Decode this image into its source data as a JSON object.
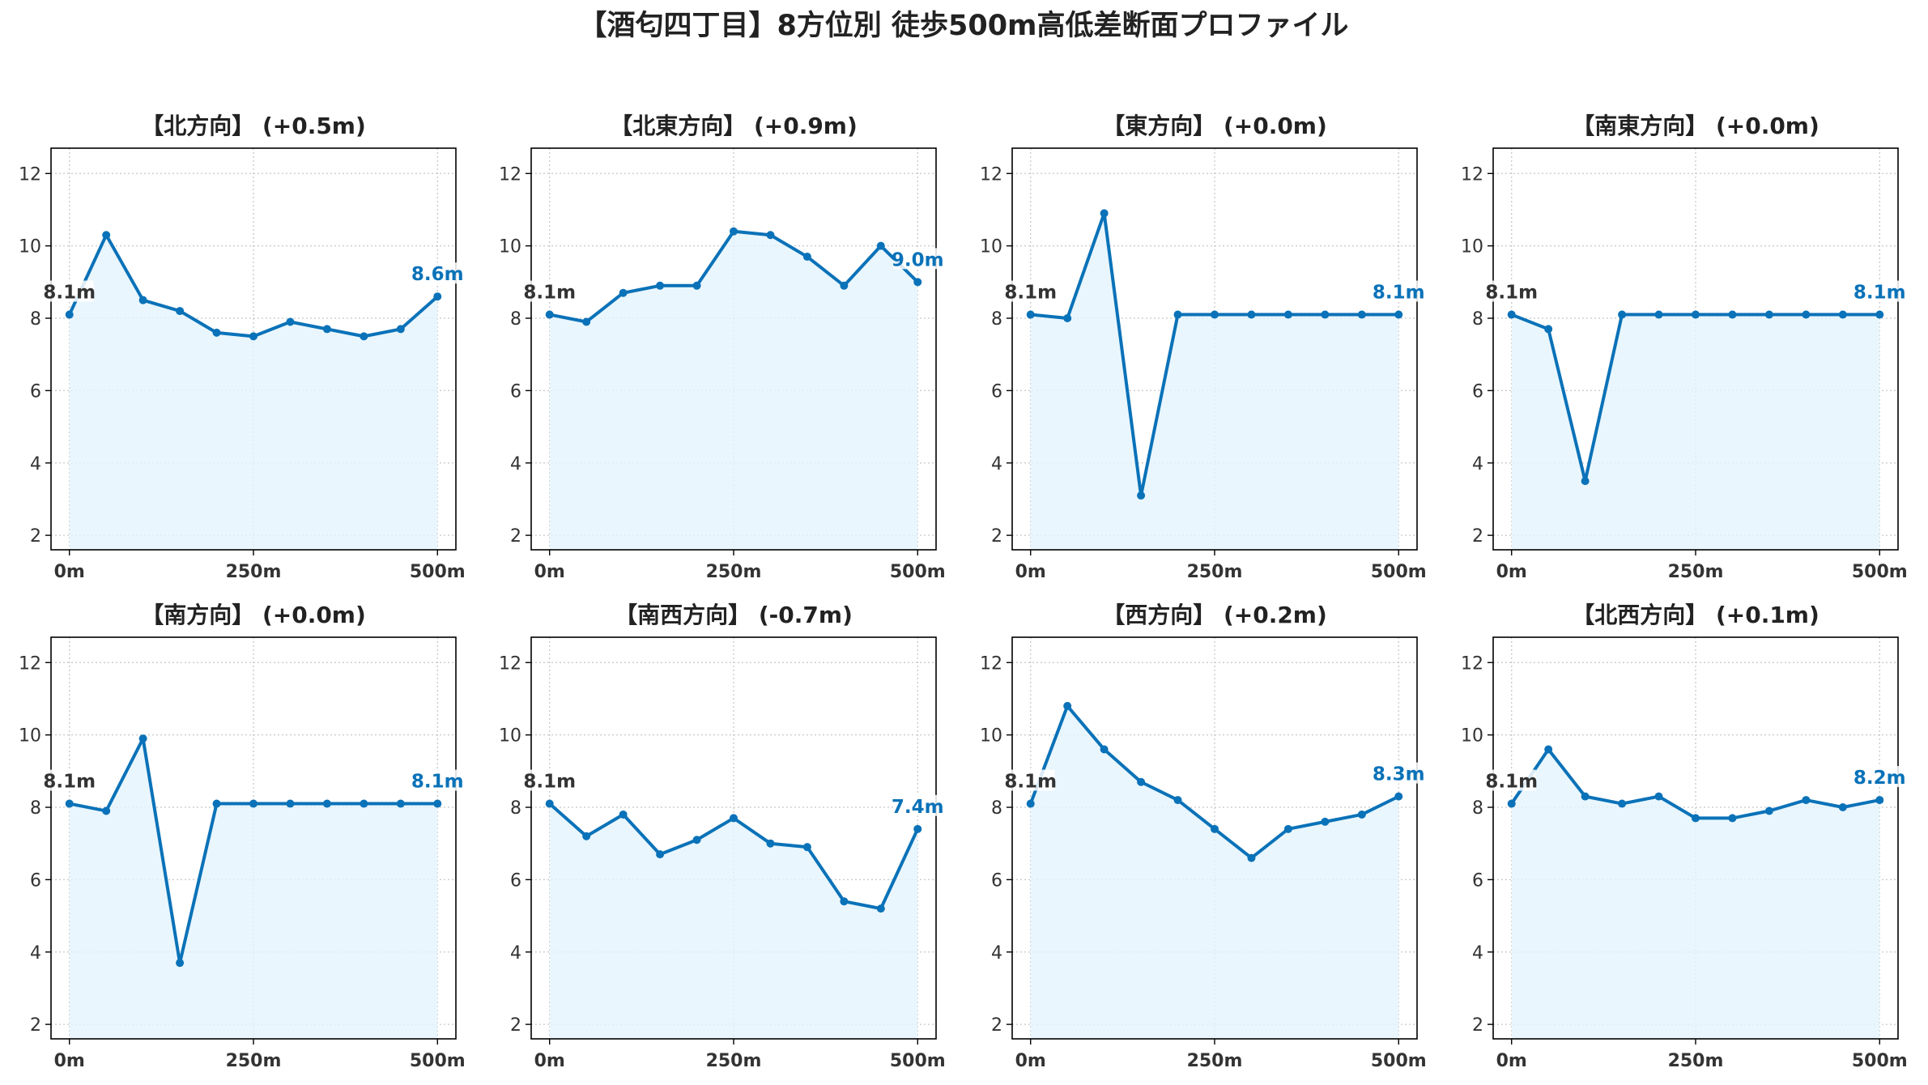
{
  "figure_title": "【酒匂四丁目】8方位別 徒歩500m高低差断面プロファイル",
  "colors": {
    "line": "#0a72b8",
    "fill": "#e3f4fc",
    "grid": "#c8c8c8",
    "end_label": "#0a72b8",
    "start_label": "#333333"
  },
  "chart_data": [
    {
      "type": "area",
      "title": "【北方向】 (+0.5m)",
      "x": [
        0,
        50,
        100,
        150,
        200,
        250,
        300,
        350,
        400,
        450,
        500
      ],
      "values": [
        8.1,
        10.3,
        8.5,
        8.2,
        7.6,
        7.5,
        7.9,
        7.7,
        7.5,
        7.7,
        8.6
      ],
      "start_label": "8.1m",
      "end_label": "8.6m",
      "xticks": [
        "0m",
        "250m",
        "500m"
      ],
      "yticks": [
        "2",
        "4",
        "6",
        "8",
        "10",
        "12"
      ],
      "ylim": [
        1.6,
        12.7
      ],
      "xlim": [
        -25,
        525
      ],
      "grid": true
    },
    {
      "type": "area",
      "title": "【北東方向】 (+0.9m)",
      "x": [
        0,
        50,
        100,
        150,
        200,
        250,
        300,
        350,
        400,
        450,
        500
      ],
      "values": [
        8.1,
        7.9,
        8.7,
        8.9,
        8.9,
        10.4,
        10.3,
        9.7,
        8.9,
        10.0,
        9.0
      ],
      "start_label": "8.1m",
      "end_label": "9.0m",
      "xticks": [
        "0m",
        "250m",
        "500m"
      ],
      "yticks": [
        "2",
        "4",
        "6",
        "8",
        "10",
        "12"
      ],
      "ylim": [
        1.6,
        12.7
      ],
      "xlim": [
        -25,
        525
      ],
      "grid": true
    },
    {
      "type": "area",
      "title": "【東方向】 (+0.0m)",
      "x": [
        0,
        50,
        100,
        150,
        200,
        250,
        300,
        350,
        400,
        450,
        500
      ],
      "values": [
        8.1,
        8.0,
        10.9,
        3.1,
        8.1,
        8.1,
        8.1,
        8.1,
        8.1,
        8.1,
        8.1
      ],
      "start_label": "8.1m",
      "end_label": "8.1m",
      "xticks": [
        "0m",
        "250m",
        "500m"
      ],
      "yticks": [
        "2",
        "4",
        "6",
        "8",
        "10",
        "12"
      ],
      "ylim": [
        1.6,
        12.7
      ],
      "xlim": [
        -25,
        525
      ],
      "grid": true
    },
    {
      "type": "area",
      "title": "【南東方向】 (+0.0m)",
      "x": [
        0,
        50,
        100,
        150,
        200,
        250,
        300,
        350,
        400,
        450,
        500
      ],
      "values": [
        8.1,
        7.7,
        3.5,
        8.1,
        8.1,
        8.1,
        8.1,
        8.1,
        8.1,
        8.1,
        8.1
      ],
      "start_label": "8.1m",
      "end_label": "8.1m",
      "xticks": [
        "0m",
        "250m",
        "500m"
      ],
      "yticks": [
        "2",
        "4",
        "6",
        "8",
        "10",
        "12"
      ],
      "ylim": [
        1.6,
        12.7
      ],
      "xlim": [
        -25,
        525
      ],
      "grid": true
    },
    {
      "type": "area",
      "title": "【南方向】 (+0.0m)",
      "x": [
        0,
        50,
        100,
        150,
        200,
        250,
        300,
        350,
        400,
        450,
        500
      ],
      "values": [
        8.1,
        7.9,
        9.9,
        3.7,
        8.1,
        8.1,
        8.1,
        8.1,
        8.1,
        8.1,
        8.1
      ],
      "start_label": "8.1m",
      "end_label": "8.1m",
      "xticks": [
        "0m",
        "250m",
        "500m"
      ],
      "yticks": [
        "2",
        "4",
        "6",
        "8",
        "10",
        "12"
      ],
      "ylim": [
        1.6,
        12.7
      ],
      "xlim": [
        -25,
        525
      ],
      "grid": true
    },
    {
      "type": "area",
      "title": "【南西方向】 (-0.7m)",
      "x": [
        0,
        50,
        100,
        150,
        200,
        250,
        300,
        350,
        400,
        450,
        500
      ],
      "values": [
        8.1,
        7.2,
        7.8,
        6.7,
        7.1,
        7.7,
        7.0,
        6.9,
        5.4,
        5.2,
        7.4
      ],
      "start_label": "8.1m",
      "end_label": "7.4m",
      "xticks": [
        "0m",
        "250m",
        "500m"
      ],
      "yticks": [
        "2",
        "4",
        "6",
        "8",
        "10",
        "12"
      ],
      "ylim": [
        1.6,
        12.7
      ],
      "xlim": [
        -25,
        525
      ],
      "grid": true
    },
    {
      "type": "area",
      "title": "【西方向】 (+0.2m)",
      "x": [
        0,
        50,
        100,
        150,
        200,
        250,
        300,
        350,
        400,
        450,
        500
      ],
      "values": [
        8.1,
        10.8,
        9.6,
        8.7,
        8.2,
        7.4,
        6.6,
        7.4,
        7.6,
        7.8,
        8.3
      ],
      "start_label": "8.1m",
      "end_label": "8.3m",
      "xticks": [
        "0m",
        "250m",
        "500m"
      ],
      "yticks": [
        "2",
        "4",
        "6",
        "8",
        "10",
        "12"
      ],
      "ylim": [
        1.6,
        12.7
      ],
      "xlim": [
        -25,
        525
      ],
      "grid": true
    },
    {
      "type": "area",
      "title": "【北西方向】 (+0.1m)",
      "x": [
        0,
        50,
        100,
        150,
        200,
        250,
        300,
        350,
        400,
        450,
        500
      ],
      "values": [
        8.1,
        9.6,
        8.3,
        8.1,
        8.3,
        7.7,
        7.7,
        7.9,
        8.2,
        8.0,
        8.2
      ],
      "start_label": "8.1m",
      "end_label": "8.2m",
      "xticks": [
        "0m",
        "250m",
        "500m"
      ],
      "yticks": [
        "2",
        "4",
        "6",
        "8",
        "10",
        "12"
      ],
      "ylim": [
        1.6,
        12.7
      ],
      "xlim": [
        -25,
        525
      ],
      "grid": true
    }
  ]
}
